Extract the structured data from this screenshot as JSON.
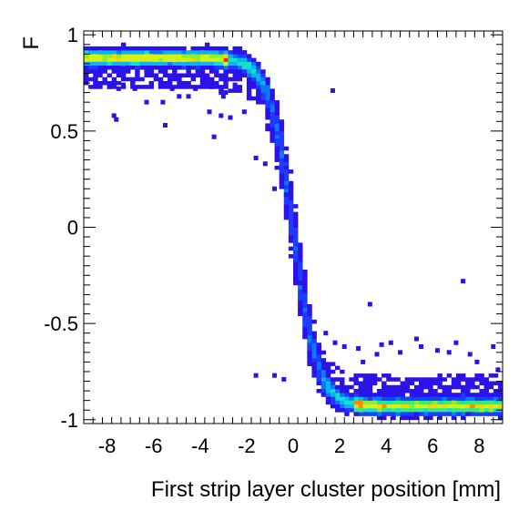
{
  "chart_data": {
    "type": "heatmap",
    "title": "",
    "xlabel": "First strip layer cluster position [mm]",
    "ylabel": "F",
    "xlim": [
      -9,
      9
    ],
    "ylim": [
      -1.02,
      1.02
    ],
    "x_ticks": [
      -8,
      -6,
      -4,
      -2,
      0,
      2,
      4,
      6,
      8
    ],
    "y_ticks": [
      -1,
      -0.5,
      0,
      0.5,
      1
    ],
    "x_tick_labels": [
      "-8",
      "-6",
      "-4",
      "-2",
      "0",
      "2",
      "4",
      "6",
      "8"
    ],
    "y_tick_labels": [
      "-1",
      "-0.5",
      "0",
      "0.5",
      "1"
    ],
    "grid": false,
    "bin_width_x": 0.2,
    "bin_width_y": 0.02,
    "band_model": {
      "description": "2D histogram of F vs position; density concentrated along an S-shaped band",
      "plateau_high": 0.88,
      "plateau_low": -0.93,
      "center_x": 0.0,
      "transition_scale_mm": 1.05
    },
    "outliers": [
      {
        "x": -7.9,
        "y": 0.73
      },
      {
        "x": -7.5,
        "y": 0.72
      },
      {
        "x": -7.3,
        "y": 0.74
      },
      {
        "x": -6.8,
        "y": 0.72
      },
      {
        "x": -6.3,
        "y": 0.65
      },
      {
        "x": -7.7,
        "y": 0.58
      },
      {
        "x": -7.6,
        "y": 0.56
      },
      {
        "x": -5.6,
        "y": 0.65
      },
      {
        "x": -5.2,
        "y": 0.72
      },
      {
        "x": -4.9,
        "y": 0.68
      },
      {
        "x": -4.5,
        "y": 0.68
      },
      {
        "x": -4.2,
        "y": 0.72
      },
      {
        "x": -3.5,
        "y": 0.73
      },
      {
        "x": -3.1,
        "y": 0.7
      },
      {
        "x": -3.0,
        "y": 0.68
      },
      {
        "x": -2.5,
        "y": 0.74
      },
      {
        "x": -3.6,
        "y": 0.6
      },
      {
        "x": -5.5,
        "y": 0.53
      },
      {
        "x": -3.4,
        "y": 0.47
      },
      {
        "x": -2.7,
        "y": 0.57
      },
      {
        "x": -3.1,
        "y": 0.58
      },
      {
        "x": -2.1,
        "y": 0.6
      },
      {
        "x": -2.9,
        "y": 0.7
      },
      {
        "x": -1.6,
        "y": 0.36
      },
      {
        "x": -1.2,
        "y": 0.33
      },
      {
        "x": -0.8,
        "y": 0.2
      },
      {
        "x": -0.3,
        "y": 0.17
      },
      {
        "x": 0.3,
        "y": -0.29
      },
      {
        "x": 1.7,
        "y": 0.71
      },
      {
        "x": 3.3,
        "y": -0.4
      },
      {
        "x": 7.3,
        "y": -0.28
      },
      {
        "x": -1.6,
        "y": -0.77
      },
      {
        "x": -0.8,
        "y": -0.77
      },
      {
        "x": -0.4,
        "y": -0.79
      },
      {
        "x": 1.4,
        "y": -0.55
      },
      {
        "x": 1.8,
        "y": -0.6
      },
      {
        "x": 2.2,
        "y": -0.62
      },
      {
        "x": 2.8,
        "y": -0.63
      },
      {
        "x": 3.0,
        "y": -0.7
      },
      {
        "x": 3.8,
        "y": -0.61
      },
      {
        "x": 4.2,
        "y": -0.6
      },
      {
        "x": 5.3,
        "y": -0.58
      },
      {
        "x": 5.5,
        "y": -0.62
      },
      {
        "x": 6.2,
        "y": -0.64
      },
      {
        "x": 6.7,
        "y": -0.65
      },
      {
        "x": 7.0,
        "y": -0.6
      },
      {
        "x": 7.6,
        "y": -0.66
      },
      {
        "x": 7.9,
        "y": -0.7
      },
      {
        "x": 8.6,
        "y": -0.62
      },
      {
        "x": 8.8,
        "y": -0.74
      },
      {
        "x": 4.6,
        "y": -0.65
      },
      {
        "x": 3.6,
        "y": -0.66
      }
    ]
  }
}
